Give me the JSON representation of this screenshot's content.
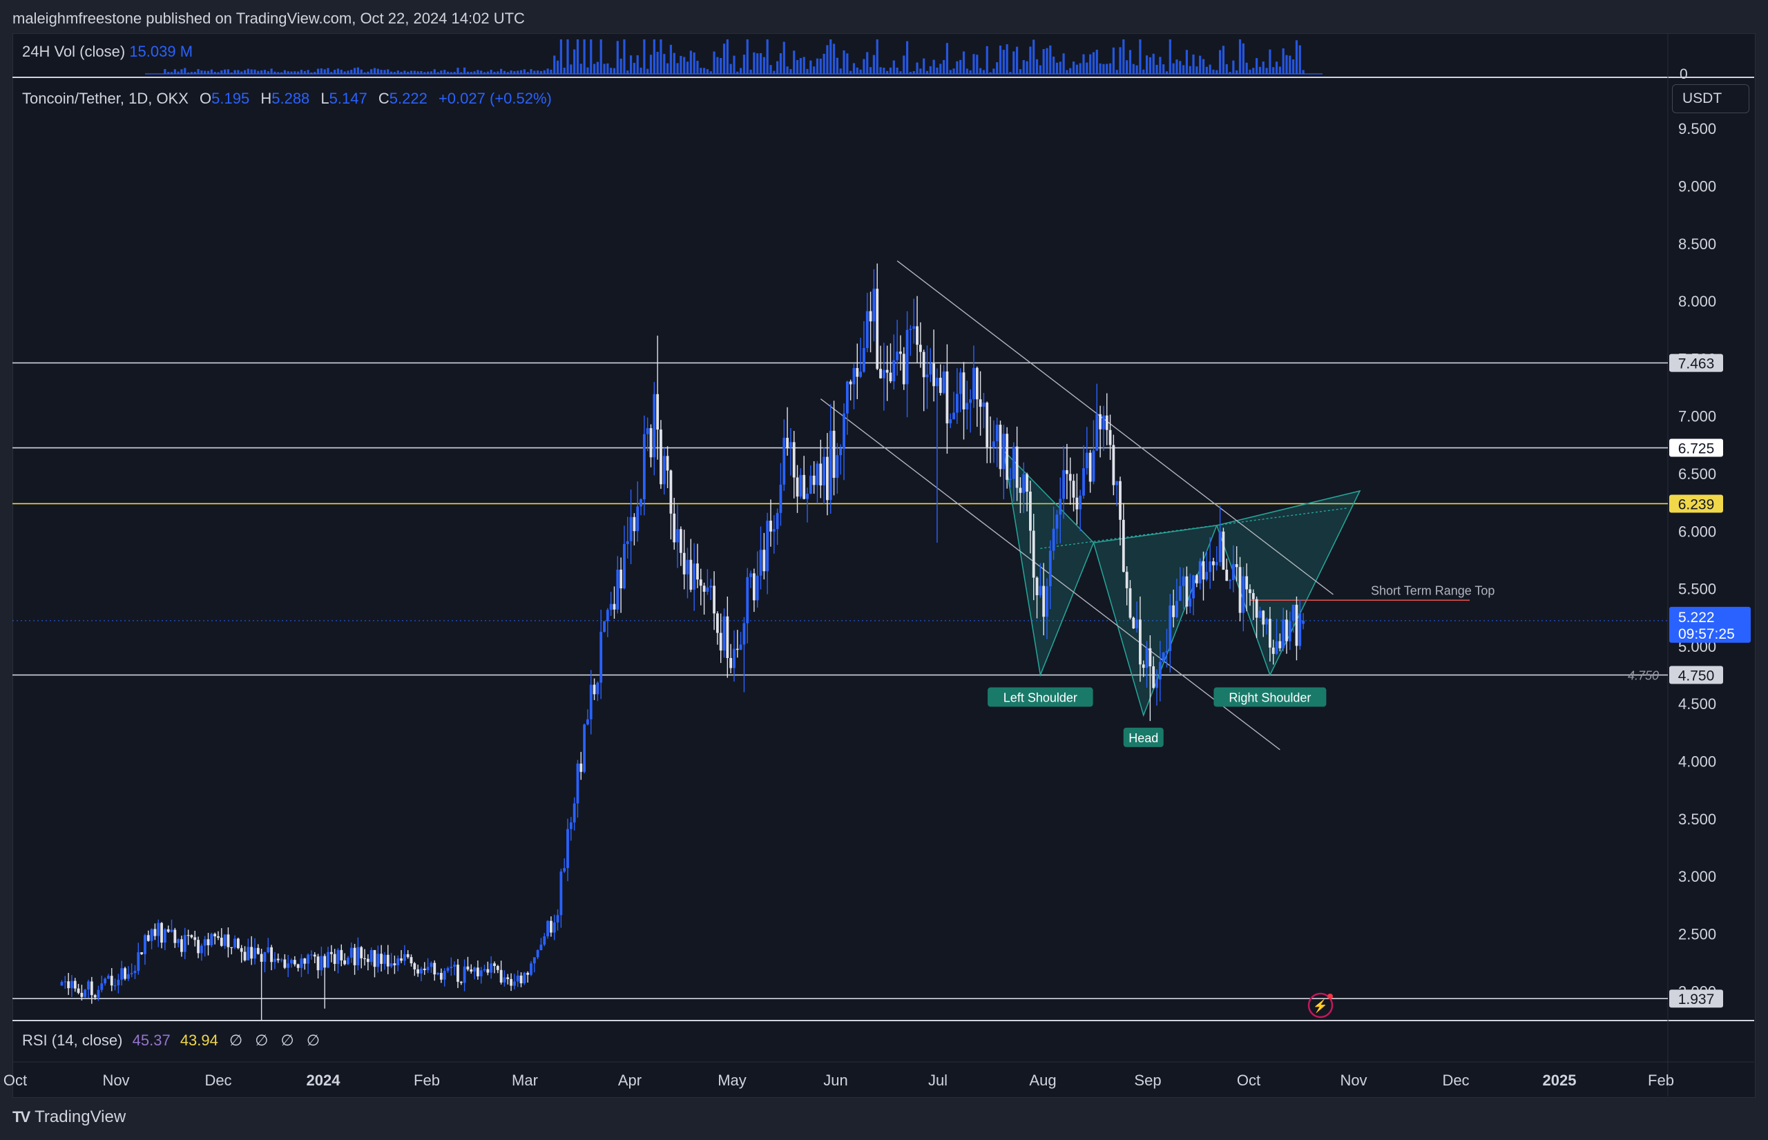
{
  "attribution": "maleighmfreestone published on TradingView.com, Oct 22, 2024 14:02 UTC",
  "volume_legend": {
    "label": "24H Vol (close)",
    "value": "15.039 M"
  },
  "legend": {
    "symbol": "Toncoin/Tether, 1D, OKX",
    "o_key": "O",
    "o_val": "5.195",
    "h_key": "H",
    "h_val": "5.288",
    "l_key": "L",
    "l_val": "5.147",
    "c_key": "C",
    "c_val": "5.222",
    "change": "+0.027 (+0.52%)"
  },
  "currency": "USDT",
  "rsi_legend": {
    "label": "RSI (14, close)",
    "v1": "45.37",
    "v2": "43.94",
    "flags": "∅ ∅ ∅ ∅"
  },
  "brand": "TradingView",
  "colors": {
    "up": "#2962ff",
    "down": "#e0e3eb",
    "accent": "#2962ff",
    "yellow": "#f0d84a",
    "pattern": "#26a69a",
    "bg": "#131722"
  },
  "chart_data": {
    "type": "candlestick",
    "price_axis_ticks": [
      "9.500",
      "9.000",
      "8.500",
      "8.000",
      "7.500",
      "7.000",
      "6.500",
      "6.000",
      "5.500",
      "5.000",
      "4.500",
      "4.000",
      "3.500",
      "3.000",
      "2.500",
      "2.000"
    ],
    "volume_axis_tick": "0",
    "ylim": [
      1.7,
      9.6
    ],
    "time_axis_labels": [
      {
        "label": "Oct",
        "bold": false
      },
      {
        "label": "Nov",
        "bold": false
      },
      {
        "label": "Dec",
        "bold": false
      },
      {
        "label": "2024",
        "bold": true
      },
      {
        "label": "Feb",
        "bold": false
      },
      {
        "label": "Mar",
        "bold": false
      },
      {
        "label": "Apr",
        "bold": false
      },
      {
        "label": "May",
        "bold": false
      },
      {
        "label": "Jun",
        "bold": false
      },
      {
        "label": "Jul",
        "bold": false
      },
      {
        "label": "Aug",
        "bold": false
      },
      {
        "label": "Sep",
        "bold": false
      },
      {
        "label": "Oct",
        "bold": false
      },
      {
        "label": "Nov",
        "bold": false
      },
      {
        "label": "Dec",
        "bold": false
      },
      {
        "label": "2025",
        "bold": true
      },
      {
        "label": "Feb",
        "bold": false
      }
    ],
    "anchors": [
      [
        "2023-10-15",
        2.05
      ],
      [
        "2023-10-25",
        2.02
      ],
      [
        "2023-11-05",
        2.2
      ],
      [
        "2023-11-12",
        2.55
      ],
      [
        "2023-11-20",
        2.4
      ],
      [
        "2023-12-01",
        2.45
      ],
      [
        "2023-12-10",
        2.35
      ],
      [
        "2023-12-20",
        2.3
      ],
      [
        "2024-01-01",
        2.25
      ],
      [
        "2024-01-12",
        2.3
      ],
      [
        "2024-01-22",
        2.28
      ],
      [
        "2024-02-01",
        2.22
      ],
      [
        "2024-02-10",
        2.15
      ],
      [
        "2024-02-20",
        2.18
      ],
      [
        "2024-03-01",
        2.1
      ],
      [
        "2024-03-07",
        2.4
      ],
      [
        "2024-03-12",
        2.7
      ],
      [
        "2024-03-16",
        3.6
      ],
      [
        "2024-03-20",
        4.2
      ],
      [
        "2024-03-25",
        5.0
      ],
      [
        "2024-03-30",
        5.5
      ],
      [
        "2024-04-05",
        6.4
      ],
      [
        "2024-04-10",
        7.0
      ],
      [
        "2024-04-14",
        6.3
      ],
      [
        "2024-04-20",
        5.7
      ],
      [
        "2024-04-28",
        5.3
      ],
      [
        "2024-05-04",
        4.9
      ],
      [
        "2024-05-08",
        5.4
      ],
      [
        "2024-05-14",
        5.9
      ],
      [
        "2024-05-20",
        6.7
      ],
      [
        "2024-05-26",
        6.3
      ],
      [
        "2024-06-01",
        6.5
      ],
      [
        "2024-06-08",
        7.3
      ],
      [
        "2024-06-15",
        7.8
      ],
      [
        "2024-06-20",
        7.2
      ],
      [
        "2024-06-26",
        7.6
      ],
      [
        "2024-07-02",
        7.6
      ],
      [
        "2024-07-07",
        7.1
      ],
      [
        "2024-07-12",
        7.3
      ],
      [
        "2024-07-18",
        7.0
      ],
      [
        "2024-07-24",
        6.7
      ],
      [
        "2024-07-30",
        6.4
      ],
      [
        "2024-08-05",
        5.2
      ],
      [
        "2024-08-10",
        6.5
      ],
      [
        "2024-08-16",
        6.2
      ],
      [
        "2024-08-22",
        6.9
      ],
      [
        "2024-08-27",
        6.4
      ],
      [
        "2024-08-31",
        5.3
      ],
      [
        "2024-09-07",
        4.7
      ],
      [
        "2024-09-14",
        5.4
      ],
      [
        "2024-09-20",
        5.5
      ],
      [
        "2024-09-28",
        5.9
      ],
      [
        "2024-10-02",
        5.5
      ],
      [
        "2024-10-08",
        5.25
      ],
      [
        "2024-10-14",
        5.1
      ],
      [
        "2024-10-22",
        5.22
      ]
    ],
    "wick_spikes": [
      {
        "date": "2023-12-14",
        "low": 1.75
      },
      {
        "date": "2024-01-02",
        "low": 1.85
      },
      {
        "date": "2024-04-11",
        "high": 7.7
      },
      {
        "date": "2024-05-07",
        "low": 4.6
      },
      {
        "date": "2024-07-04",
        "low": 5.9
      },
      {
        "date": "2024-09-06",
        "low": 4.35
      }
    ],
    "last": {
      "date": "2024-10-22",
      "open": 5.195,
      "high": 5.288,
      "low": 5.147,
      "close": 5.222
    },
    "horizontal_levels": [
      {
        "price": 7.463,
        "label": "7.463",
        "color": "#d1d4dc",
        "tag_bg": "#d1d4dc",
        "tag_fg": "#131722"
      },
      {
        "price": 6.725,
        "label": "6.725",
        "color": "#d1d4dc",
        "tag_bg": "#ffffff",
        "tag_fg": "#131722"
      },
      {
        "price": 6.239,
        "label": "6.239",
        "color": "#f0d84a",
        "tag_bg": "#f0d84a",
        "tag_fg": "#131722"
      },
      {
        "price": 4.75,
        "label": "4.750",
        "color": "#d1d4dc",
        "tag_bg": "#d1d4dc",
        "tag_fg": "#131722",
        "line_label": "4.750"
      },
      {
        "price": 1.937,
        "label": "1.937",
        "color": "#d1d4dc",
        "tag_bg": "#d1d4dc",
        "tag_fg": "#131722"
      }
    ],
    "current_price_tag": {
      "price": "5.222",
      "countdown": "09:57:25",
      "color": "#2962ff"
    },
    "range_line": {
      "price": 5.4,
      "from": "2024-10-06",
      "to": "2024-12-11",
      "label": "Short Term Range Top",
      "color": "#ef5350"
    },
    "pattern": {
      "type": "inverse head and shoulders",
      "labels": [
        {
          "text": "Left Shoulder",
          "date": "2024-08-04",
          "price": 4.75
        },
        {
          "text": "Head",
          "date": "2024-09-04",
          "price": 4.4
        },
        {
          "text": "Right Shoulder",
          "date": "2024-10-12",
          "price": 4.75
        }
      ]
    },
    "trendlines": [
      {
        "from": [
          "2024-06-22",
          8.35
        ],
        "to": [
          "2024-10-31",
          5.45
        ]
      },
      {
        "from": [
          "2024-05-30",
          7.15
        ],
        "to": [
          "2024-10-15",
          4.1
        ]
      }
    ]
  }
}
